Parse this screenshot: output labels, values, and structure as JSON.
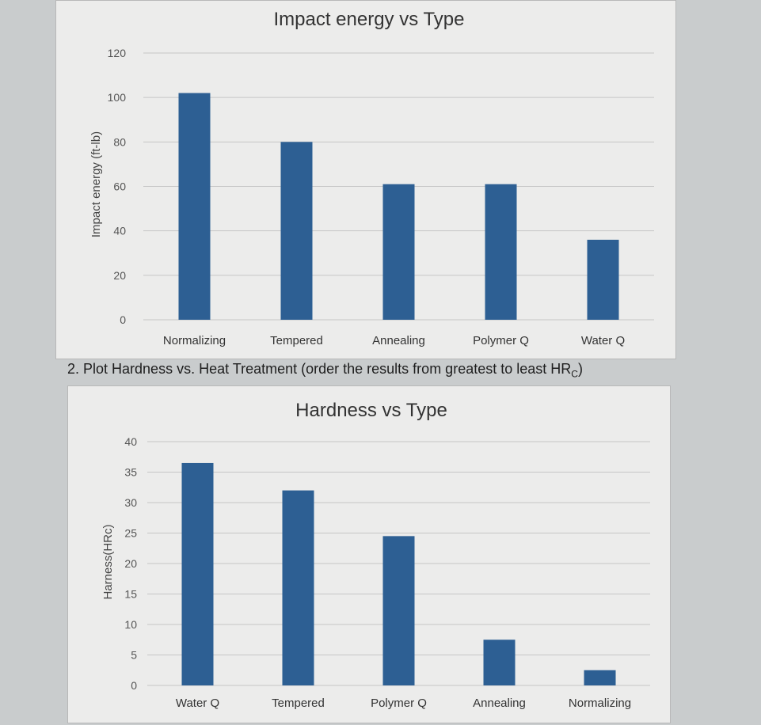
{
  "question": {
    "text": "2. Plot Hardness vs. Heat Treatment (order the results from greatest to least HR",
    "sub": "C",
    "close": ")"
  },
  "chart_data": [
    {
      "type": "bar",
      "title": "Impact energy vs Type",
      "xlabel": "",
      "ylabel": "Impact energy (ft-lb)",
      "categories": [
        "Normalizing",
        "Tempered",
        "Annealing",
        "Polymer Q",
        "Water Q"
      ],
      "values": [
        102,
        80,
        61,
        61,
        36
      ],
      "ylim": [
        0,
        120
      ],
      "yticks": [
        0,
        20,
        40,
        60,
        80,
        100,
        120
      ],
      "grid": true,
      "color": "#2d5f93"
    },
    {
      "type": "bar",
      "title": "Hardness vs Type",
      "xlabel": "",
      "ylabel": "Harness(HRc)",
      "categories": [
        "Water Q",
        "Tempered",
        "Polymer Q",
        "Annealing",
        "Normalizing"
      ],
      "values": [
        36.5,
        32,
        24.5,
        7.5,
        2.5
      ],
      "ylim": [
        0,
        40
      ],
      "yticks": [
        0,
        5,
        10,
        15,
        20,
        25,
        30,
        35,
        40
      ],
      "grid": true,
      "color": "#2d5f93"
    }
  ]
}
